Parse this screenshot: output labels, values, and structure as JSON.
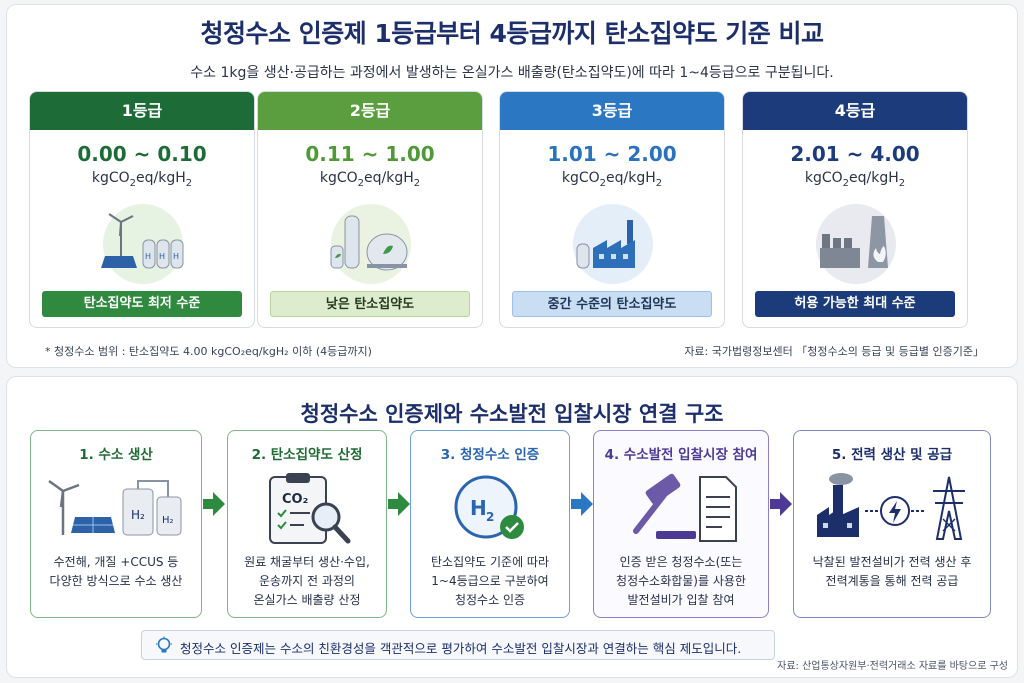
{
  "top": {
    "title": "청정수소 인증제 1등급부터 4등급까지 탄소집약도 기준 비교",
    "subtitle": "수소 1kg을 생산·공급하는 과정에서 발생하는 온실가스 배출량(탄소집약도)에 따라 1~4등급으로 구분됩니다.",
    "unit_main": "kgCO",
    "unit_mid": "eq/kgH",
    "unit_sub": "2",
    "grades": [
      {
        "label": "1등급",
        "range": "0.00 ~ 0.10",
        "badge": "탄소집약도 최저 수준"
      },
      {
        "label": "2등급",
        "range": "0.11 ~ 1.00",
        "badge": "낮은 탄소집약도"
      },
      {
        "label": "3등급",
        "range": "1.01 ~ 2.00",
        "badge": "중간 수준의 탄소집약도"
      },
      {
        "label": "4등급",
        "range": "2.01 ~ 4.00",
        "badge": "허용 가능한 최대 수준"
      }
    ],
    "scope_note": "* 청정수소 범위 : 탄소집약도 4.00 kgCO₂eq/kgH₂ 이하 (4등급까지)",
    "source": "자료: 국가법령정보센터 「청정수소의 등급 및 등급별 인증기준」"
  },
  "bottom": {
    "title": "청정수소 인증제와 수소발전 입찰시장 연결 구조",
    "steps": [
      {
        "title": "1. 수소 생산",
        "desc_1": "수전해, 개질 +CCUS 등",
        "desc_2": "다양한 방식으로 수소 생산",
        "desc_3": ""
      },
      {
        "title": "2. 탄소집약도 산정",
        "desc_1": "원료 채굴부터 생산·수입,",
        "desc_2": "운송까지 전 과정의",
        "desc_3": "온실가스 배출량 산정"
      },
      {
        "title": "3. 청정수소 인증",
        "desc_1": "탄소집약도 기준에 따라",
        "desc_2": "1~4등급으로 구분하여",
        "desc_3": "청정수소 인증"
      },
      {
        "title": "4. 수소발전 입찰시장 참여",
        "desc_1": "인증 받은 청정수소(또는",
        "desc_2": "청정수소화합물)를 사용한",
        "desc_3": "발전설비가 입찰 참여"
      },
      {
        "title": "5. 전력 생산 및 공급",
        "desc_1": "낙찰된 발전설비가 전력 생산 후",
        "desc_2": "전력계통을 통해 전력 공급",
        "desc_3": ""
      }
    ],
    "icon_labels": {
      "co2": "CO₂",
      "h2": "H₂",
      "h": "H",
      "two": "2"
    },
    "key_note": "청정수소 인증제는 수소의 친환경성을 객관적으로 평가하여 수소발전 입찰시장과 연결하는 핵심 제도입니다.",
    "source": "자료: 산업통상자원부·전력거래소 자료를 바탕으로 구성"
  },
  "colors": {
    "navy": "#1c2f6b",
    "green": "#1d6b37",
    "lightgreen": "#5a9e3f",
    "blue": "#2b77c1",
    "purple": "#4c3a94"
  },
  "icons": [
    "wind-turbine-icon",
    "solar-panel-icon",
    "hydrogen-tank-icon",
    "factory-icon",
    "clipboard-icon",
    "magnifier-icon",
    "check-icon",
    "gavel-icon",
    "document-icon",
    "power-plant-icon",
    "lightning-icon",
    "transmission-tower-icon",
    "lightbulb-icon"
  ]
}
